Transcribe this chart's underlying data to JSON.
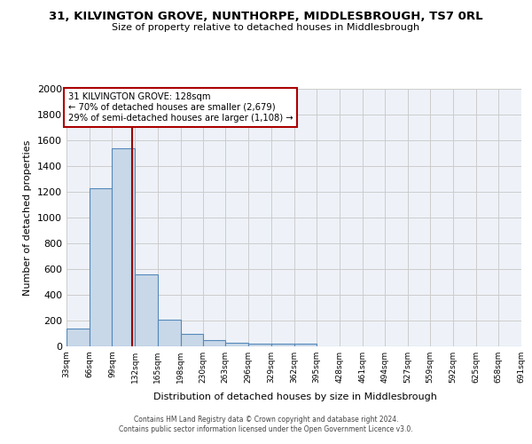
{
  "title": "31, KILVINGTON GROVE, NUNTHORPE, MIDDLESBROUGH, TS7 0RL",
  "subtitle": "Size of property relative to detached houses in Middlesbrough",
  "xlabel": "Distribution of detached houses by size in Middlesbrough",
  "ylabel": "Number of detached properties",
  "bin_edges": [
    33,
    66,
    99,
    132,
    165,
    198,
    230,
    263,
    296,
    329,
    362,
    395,
    428,
    461,
    494,
    527,
    559,
    592,
    625,
    658,
    691
  ],
  "bar_heights": [
    140,
    1230,
    1540,
    560,
    210,
    100,
    50,
    25,
    20,
    20,
    20,
    0,
    0,
    0,
    0,
    0,
    0,
    0,
    0,
    0
  ],
  "bar_color": "#c8d8e8",
  "bar_edge_color": "#5588bb",
  "grid_color": "#cccccc",
  "bg_color": "#eef2f8",
  "vline_x": 128,
  "vline_color": "#990000",
  "annotation_text": "31 KILVINGTON GROVE: 128sqm\n← 70% of detached houses are smaller (2,679)\n29% of semi-detached houses are larger (1,108) →",
  "annotation_box_color": "#ffffff",
  "annotation_box_edge": "#aa0000",
  "ylim": [
    0,
    2000
  ],
  "yticks": [
    0,
    200,
    400,
    600,
    800,
    1000,
    1200,
    1400,
    1600,
    1800,
    2000
  ],
  "footer_line1": "Contains HM Land Registry data © Crown copyright and database right 2024.",
  "footer_line2": "Contains public sector information licensed under the Open Government Licence v3.0."
}
